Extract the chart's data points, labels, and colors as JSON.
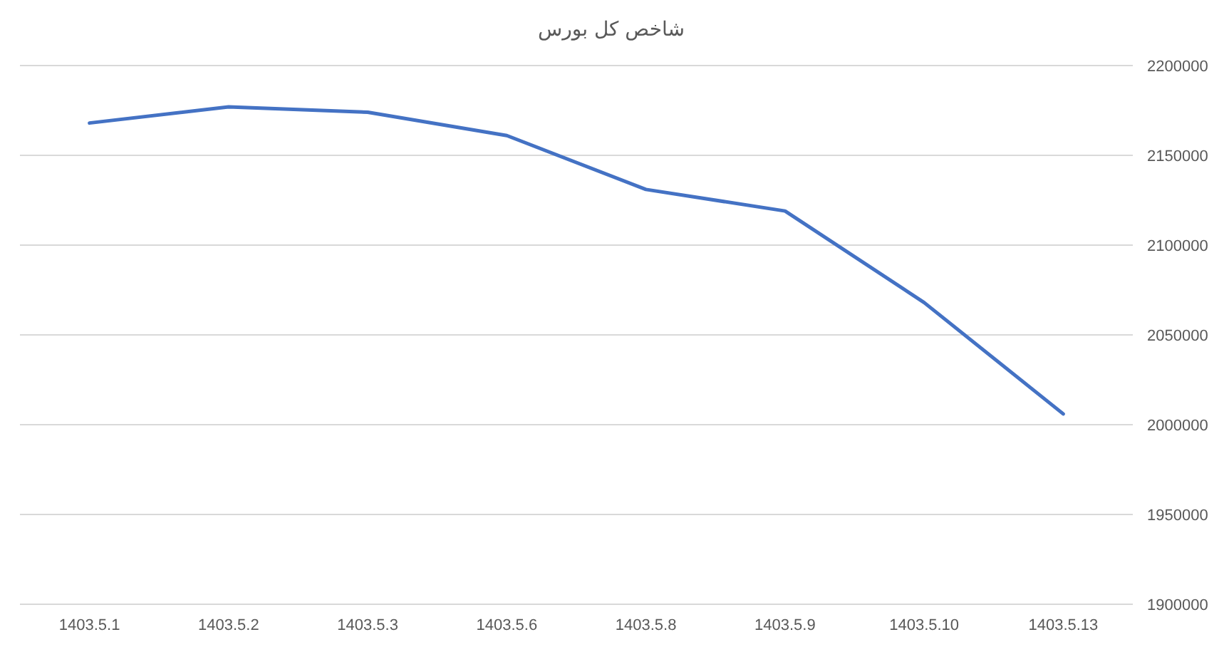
{
  "chart_data": {
    "type": "line",
    "title": "شاخص کل بورس",
    "categories": [
      "1403.5.1",
      "1403.5.2",
      "1403.5.3",
      "1403.5.6",
      "1403.5.8",
      "1403.5.9",
      "1403.5.10",
      "1403.5.13"
    ],
    "series": [
      {
        "color": "#4472c4",
        "values": [
          2168000,
          2177000,
          2174000,
          2161000,
          2131000,
          2119000,
          2068000,
          2006000
        ]
      }
    ],
    "ylim": [
      1900000,
      2200000
    ],
    "yticks": [
      1900000,
      1950000,
      2000000,
      2050000,
      2100000,
      2150000,
      2200000
    ],
    "grid": "y",
    "marker": "none",
    "line_style": "solid"
  }
}
